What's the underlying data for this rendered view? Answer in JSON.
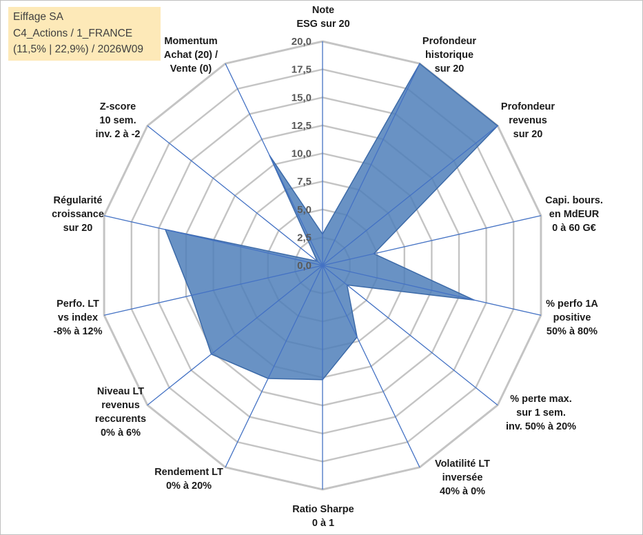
{
  "info": {
    "name": "Eiffage SA",
    "line2": "C4_Actions / 1_FRANCE",
    "line3": "(11,5% | 22,9%) / 2026W09"
  },
  "chart_data": {
    "type": "radar",
    "rlim": [
      0,
      20
    ],
    "tick_labels": [
      "0,0",
      "2,5",
      "5,0",
      "7,5",
      "10,0",
      "12,5",
      "15,0",
      "17,5",
      "20,0"
    ],
    "tick_values": [
      0,
      2.5,
      5,
      7.5,
      10,
      12.5,
      15,
      17.5,
      20
    ],
    "grid": true,
    "colors": {
      "fill": "#4f7fba",
      "stroke": "#3c6aa8",
      "spoke": "#4472c4",
      "grid": "#c4c4c4"
    },
    "axes": [
      {
        "label": [
          "Note",
          "ESG sur 20"
        ]
      },
      {
        "label": [
          "Profondeur",
          "historique",
          "sur 20"
        ]
      },
      {
        "label": [
          "Profondeur",
          "revenus",
          "sur 20"
        ]
      },
      {
        "label": [
          "Capi. bours.",
          "en MdEUR",
          "0 à 60 G€"
        ]
      },
      {
        "label": [
          "% perfo 1A",
          "positive",
          "50% à 80%"
        ]
      },
      {
        "label": [
          "% perte max.",
          "sur 1 sem.",
          "inv. 50% à 20%"
        ]
      },
      {
        "label": [
          "Volatilité LT",
          "inversée",
          "40% à 0%"
        ]
      },
      {
        "label": [
          "Ratio Sharpe",
          "0 à 1"
        ]
      },
      {
        "label": [
          "Rendement LT",
          "0% à 20%"
        ]
      },
      {
        "label": [
          "Niveau LT",
          "revenus",
          "reccurents",
          "0% à 6%"
        ]
      },
      {
        "label": [
          "Perfo. LT",
          "vs index",
          "-8% à 12%"
        ]
      },
      {
        "label": [
          "Régularité",
          "croissance",
          "sur 20"
        ]
      },
      {
        "label": [
          "Z-score",
          "10 sem.",
          "inv. 2 à -2"
        ]
      },
      {
        "label": [
          "Momentum",
          "Achat (20) /",
          "Vente (0)"
        ]
      }
    ],
    "series": [
      {
        "values": [
          2.8,
          20,
          20,
          4.7,
          13.9,
          2.8,
          7.1,
          10.2,
          11.2,
          12.7,
          12.0,
          14.4,
          0.6,
          10.9
        ]
      }
    ]
  }
}
